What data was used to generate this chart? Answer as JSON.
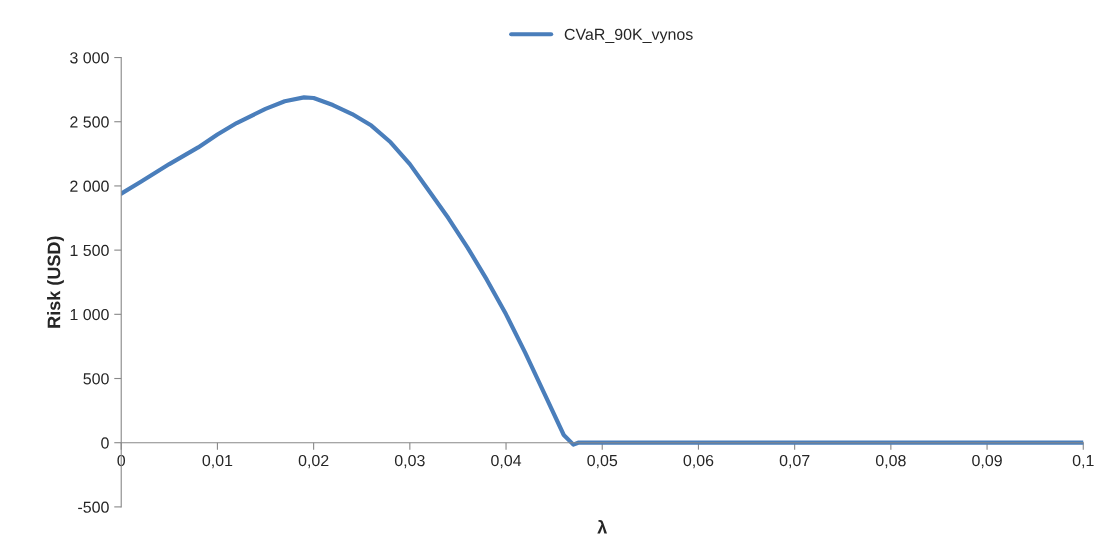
{
  "chart_data": {
    "type": "line",
    "xlabel": "λ",
    "ylabel": "Risk (USD)",
    "x": [
      0,
      0.002,
      0.005,
      0.008,
      0.01,
      0.012,
      0.015,
      0.017,
      0.019,
      0.02,
      0.022,
      0.024,
      0.026,
      0.028,
      0.03,
      0.032,
      0.034,
      0.036,
      0.038,
      0.04,
      0.042,
      0.044,
      0.046,
      0.047,
      0.0475,
      0.05,
      0.06,
      0.07,
      0.08,
      0.09,
      0.1
    ],
    "series": [
      {
        "name": "CVaR_90K_vynos",
        "color": "#4a7ebb",
        "values": [
          1940,
          2030,
          2170,
          2300,
          2400,
          2490,
          2600,
          2660,
          2690,
          2685,
          2630,
          2560,
          2470,
          2340,
          2170,
          1960,
          1750,
          1520,
          1270,
          1000,
          700,
          380,
          60,
          -15,
          0,
          0,
          0,
          0,
          0,
          0,
          0
        ]
      }
    ],
    "xlim": [
      0,
      0.1
    ],
    "xticks": [
      {
        "value": 0,
        "label": "0"
      },
      {
        "value": 0.01,
        "label": "0,01"
      },
      {
        "value": 0.02,
        "label": "0,02"
      },
      {
        "value": 0.03,
        "label": "0,03"
      },
      {
        "value": 0.04,
        "label": "0,04"
      },
      {
        "value": 0.05,
        "label": "0,05"
      },
      {
        "value": 0.06,
        "label": "0,06"
      },
      {
        "value": 0.07,
        "label": "0,07"
      },
      {
        "value": 0.08,
        "label": "0,08"
      },
      {
        "value": 0.09,
        "label": "0,09"
      },
      {
        "value": 0.1,
        "label": "0,1"
      }
    ],
    "ylim": [
      -500,
      3000
    ],
    "yticks": [
      {
        "value": -500,
        "label": "-500"
      },
      0,
      500,
      {
        "value": 1000,
        "label": "1 000"
      },
      {
        "value": 1500,
        "label": "1 500"
      },
      {
        "value": 2000,
        "label": "2 000"
      },
      {
        "value": 2500,
        "label": "2 500"
      },
      {
        "value": 3000,
        "label": "3 000"
      }
    ],
    "grid": false,
    "legend": "top",
    "marker": "none",
    "line_style": "solid"
  }
}
